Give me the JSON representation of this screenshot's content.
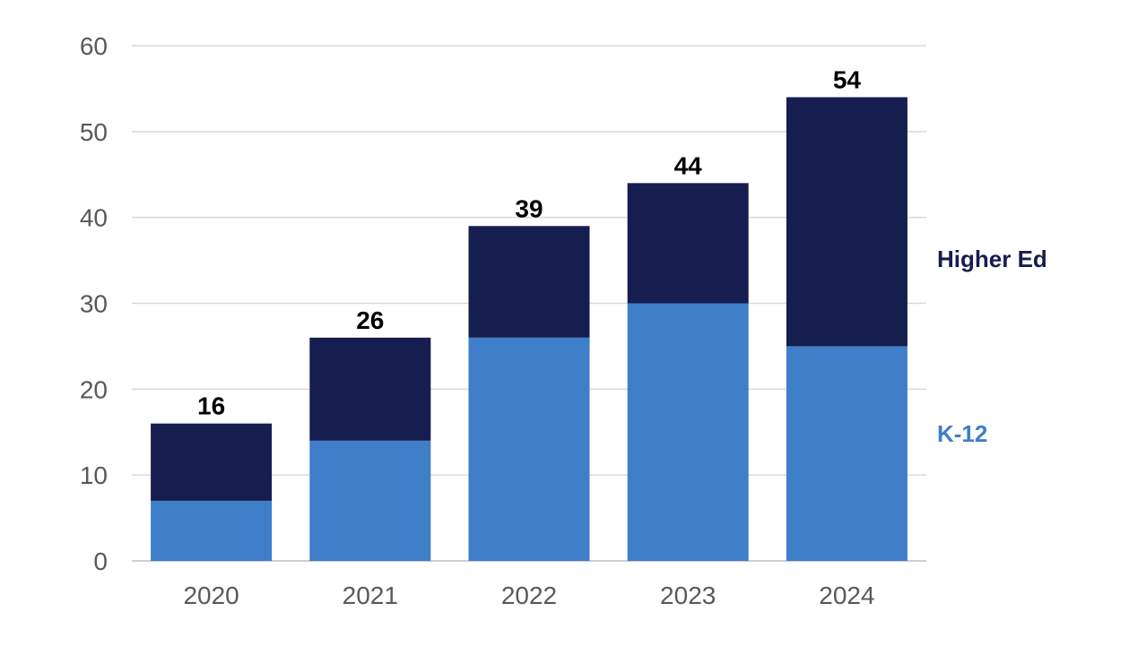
{
  "chart_data": {
    "type": "bar",
    "stacked": true,
    "categories": [
      "2020",
      "2021",
      "2022",
      "2023",
      "2024"
    ],
    "series": [
      {
        "name": "K-12",
        "values": [
          7,
          14,
          26,
          30,
          25
        ],
        "color": "#3f7ec8"
      },
      {
        "name": "Higher Ed",
        "values": [
          9,
          12,
          13,
          14,
          29
        ],
        "color": "#161d4f"
      }
    ],
    "totals": [
      16,
      26,
      39,
      44,
      54
    ],
    "yticks": [
      0,
      10,
      20,
      30,
      40,
      50,
      60
    ],
    "ylim": [
      0,
      60
    ],
    "title": "",
    "xlabel": "",
    "ylabel": "",
    "grid": true,
    "legend_position": "right"
  }
}
